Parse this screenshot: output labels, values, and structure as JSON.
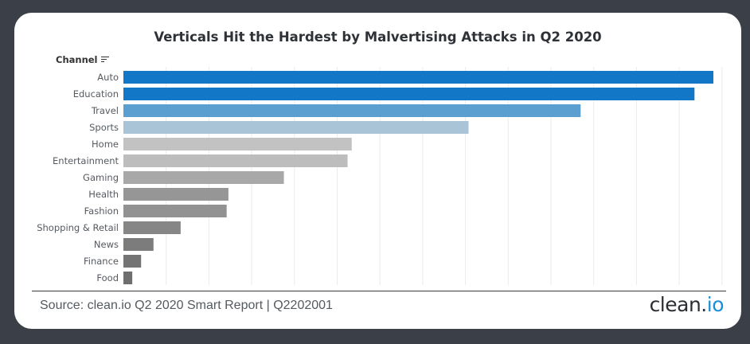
{
  "header": {
    "channel_label": "Channel"
  },
  "footer": {
    "source": "Source: clean.io Q2 2020 Smart Report | Q2202001",
    "logo_main": "clean.",
    "logo_accent": "io"
  },
  "icons": {
    "sort": "sort-lines-icon"
  },
  "chart_data": {
    "type": "bar",
    "orientation": "horizontal",
    "title": "Verticals Hit the Hardest by Malvertising Attacks in Q2 2020",
    "xlabel": "",
    "ylabel": "Channel",
    "categories": [
      "Auto",
      "Education",
      "Travel",
      "Sports",
      "Home",
      "Entertainment",
      "Gaming",
      "Health",
      "Fashion",
      "Shopping & Retail",
      "News",
      "Finance",
      "Food"
    ],
    "values": [
      100,
      96.8,
      77.5,
      58.5,
      38.7,
      38.0,
      27.2,
      17.8,
      17.5,
      9.7,
      5.1,
      3.0,
      1.5
    ],
    "colors": [
      "#1277c6",
      "#1277c6",
      "#5a9fd0",
      "#a9c4d6",
      "#c2c2c2",
      "#bdbdbd",
      "#a8a8a8",
      "#969696",
      "#929292",
      "#868686",
      "#7c7c7c",
      "#747474",
      "#6e6e6e"
    ],
    "xlim": [
      0,
      100
    ],
    "grid": true,
    "legend": "none"
  }
}
